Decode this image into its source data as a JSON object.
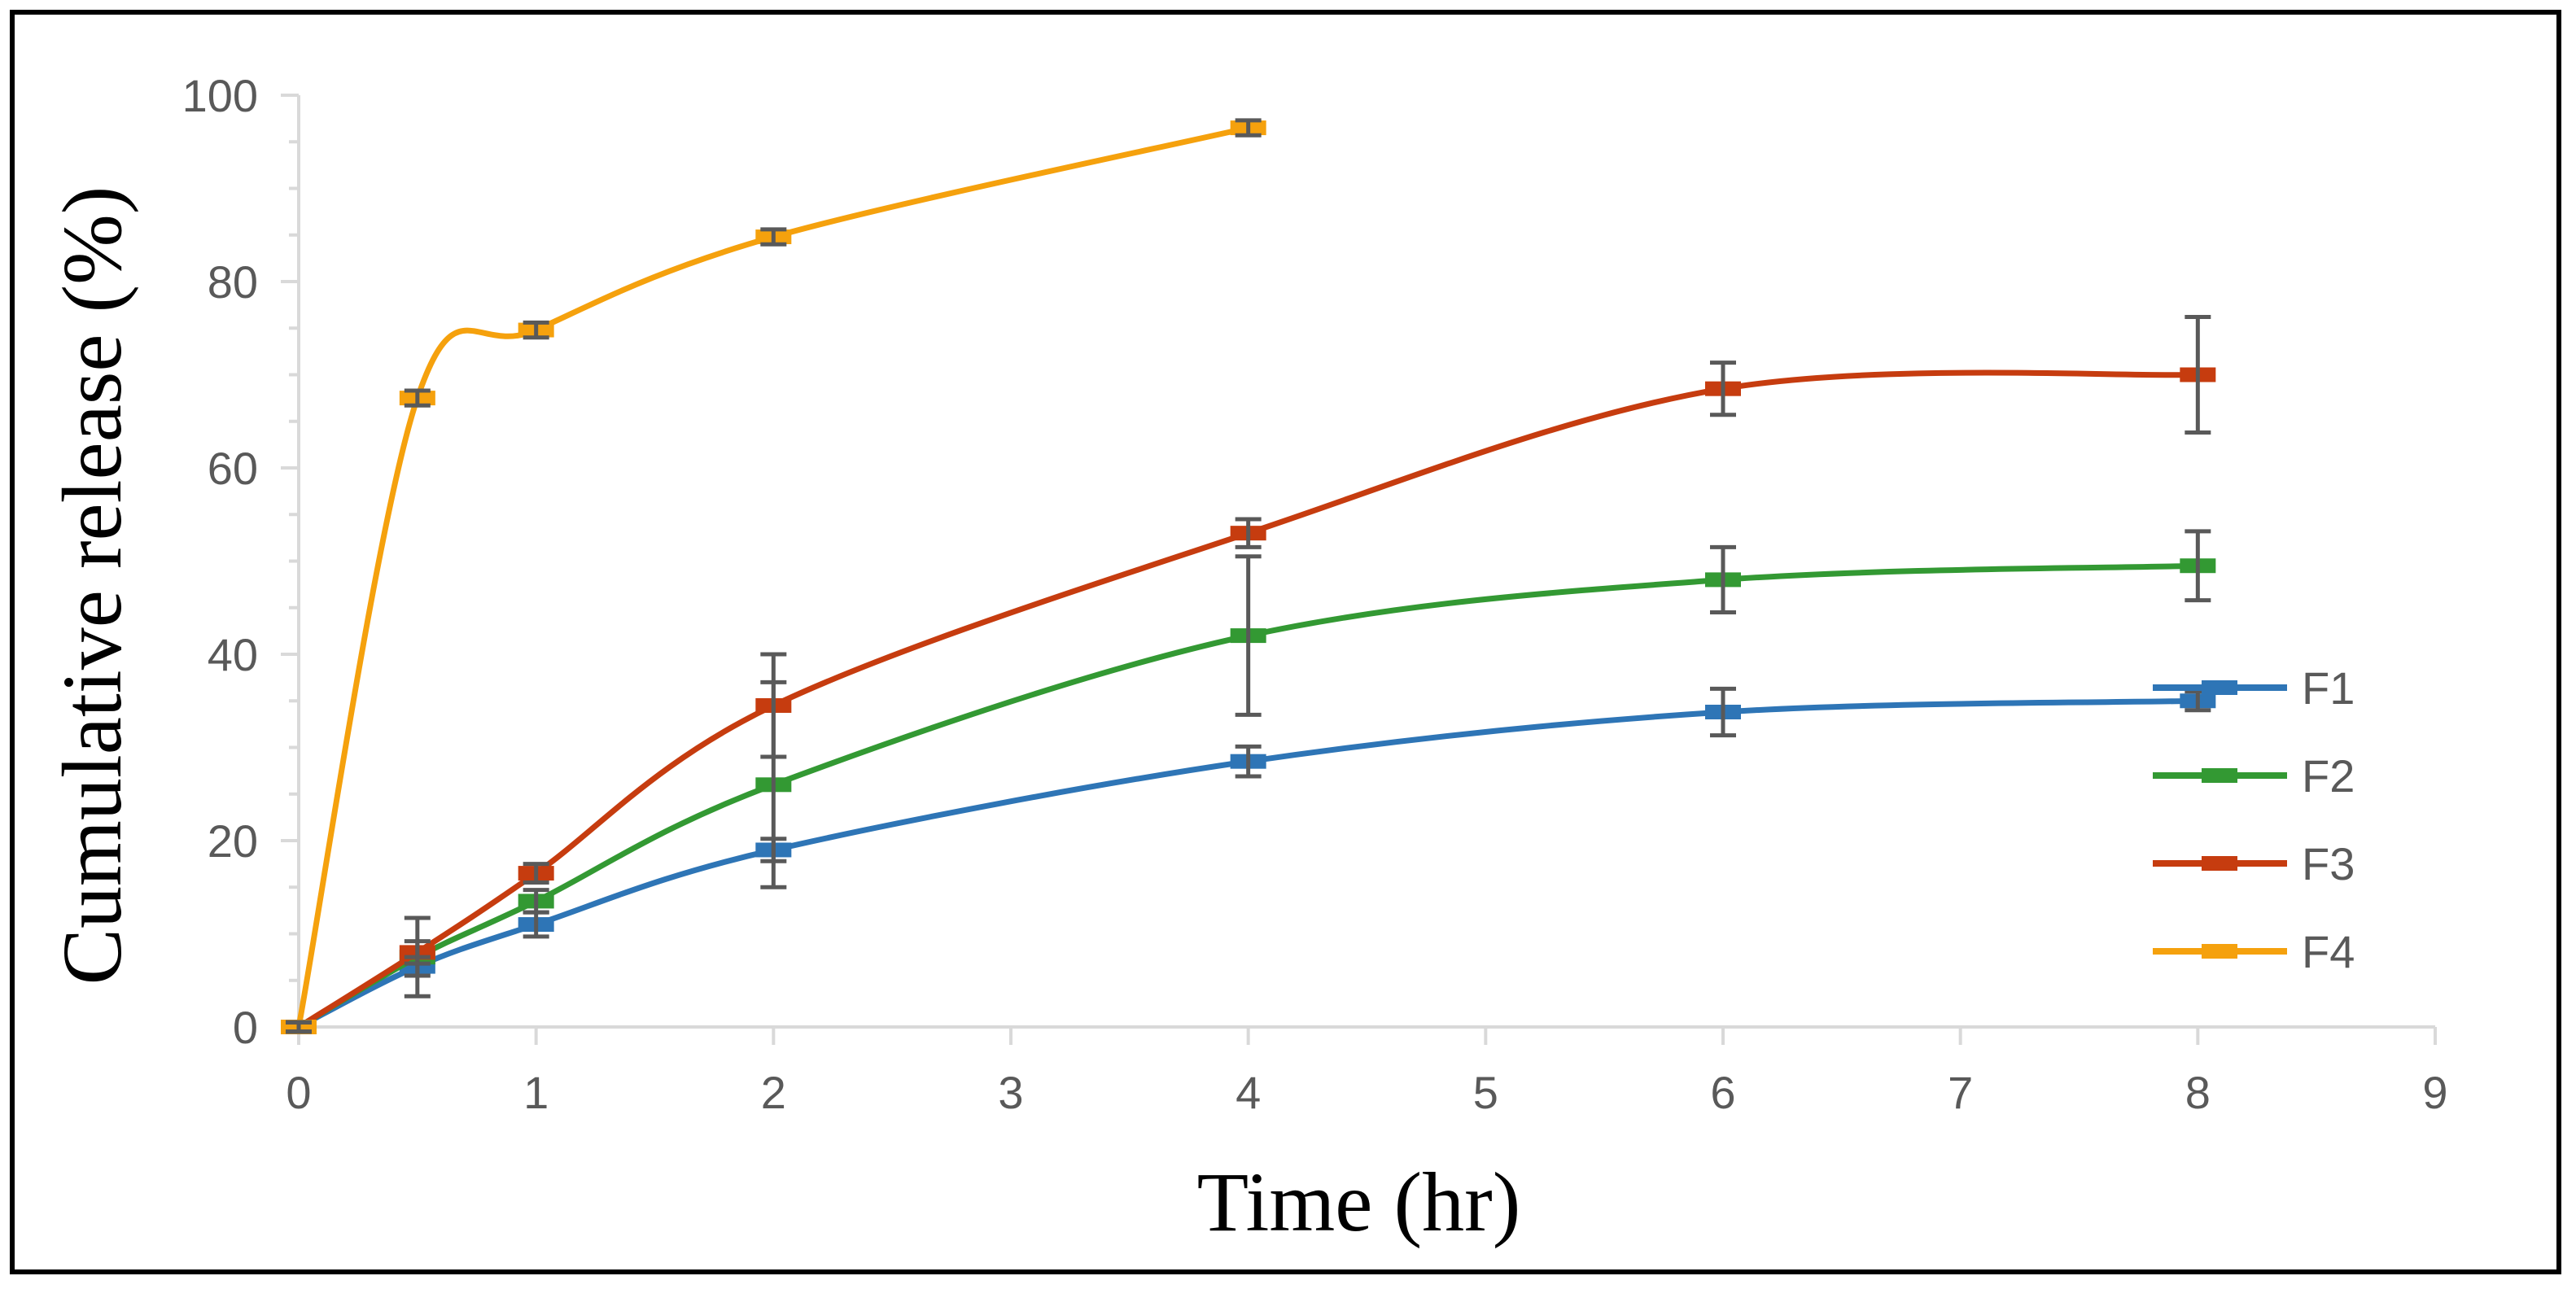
{
  "chart_data": {
    "type": "line",
    "title": "",
    "xlabel": "Time (hr)",
    "ylabel": "Cumulative  release (%)",
    "xlim": [
      0,
      9
    ],
    "ylim": [
      0,
      100
    ],
    "x_ticks": [
      "0",
      "1",
      "2",
      "3",
      "4",
      "5",
      "6",
      "7",
      "8",
      "9"
    ],
    "y_ticks": [
      "0",
      "20",
      "40",
      "60",
      "80",
      "100"
    ],
    "grid": false,
    "legend_position": "right",
    "series": [
      {
        "name": "F1",
        "color": "#2E75B6",
        "points": [
          {
            "x": 0,
            "y": 0,
            "err": 0.5
          },
          {
            "x": 0.5,
            "y": 6.5,
            "err": 1.0
          },
          {
            "x": 1,
            "y": 11.0,
            "err": 1.3
          },
          {
            "x": 2,
            "y": 19.0,
            "err": 1.2
          },
          {
            "x": 4,
            "y": 28.5,
            "err": 1.6
          },
          {
            "x": 6,
            "y": 33.8,
            "err": 2.5
          },
          {
            "x": 8,
            "y": 35.0,
            "err": 1.0
          }
        ]
      },
      {
        "name": "F2",
        "color": "#339933",
        "points": [
          {
            "x": 0,
            "y": 0,
            "err": 0.5
          },
          {
            "x": 0.5,
            "y": 7.5,
            "err": 4.2
          },
          {
            "x": 1,
            "y": 13.5,
            "err": 1.2
          },
          {
            "x": 2,
            "y": 26.0,
            "err": 11.0
          },
          {
            "x": 4,
            "y": 42.0,
            "err": 8.5
          },
          {
            "x": 6,
            "y": 48.0,
            "err": 3.5
          },
          {
            "x": 8,
            "y": 49.5,
            "err": 3.7
          }
        ]
      },
      {
        "name": "F3",
        "color": "#C63C0F",
        "points": [
          {
            "x": 0,
            "y": 0,
            "err": 0.5
          },
          {
            "x": 0.5,
            "y": 8.0,
            "err": 1.2
          },
          {
            "x": 1,
            "y": 16.5,
            "err": 1.0
          },
          {
            "x": 2,
            "y": 34.5,
            "err": 5.5
          },
          {
            "x": 4,
            "y": 53.0,
            "err": 1.5
          },
          {
            "x": 6,
            "y": 68.5,
            "err": 2.8
          },
          {
            "x": 8,
            "y": 70.0,
            "err": 6.2
          }
        ]
      },
      {
        "name": "F4",
        "color": "#F5A10D",
        "points": [
          {
            "x": 0,
            "y": 0,
            "err": 0.5
          },
          {
            "x": 0.5,
            "y": 67.5,
            "err": 0.8
          },
          {
            "x": 1,
            "y": 74.8,
            "err": 0.8
          },
          {
            "x": 2,
            "y": 84.8,
            "err": 0.8
          },
          {
            "x": 4,
            "y": 96.5,
            "err": 0.8
          }
        ]
      }
    ],
    "error_bar_color": "#595959",
    "axis_color": "#D9D9D9"
  }
}
